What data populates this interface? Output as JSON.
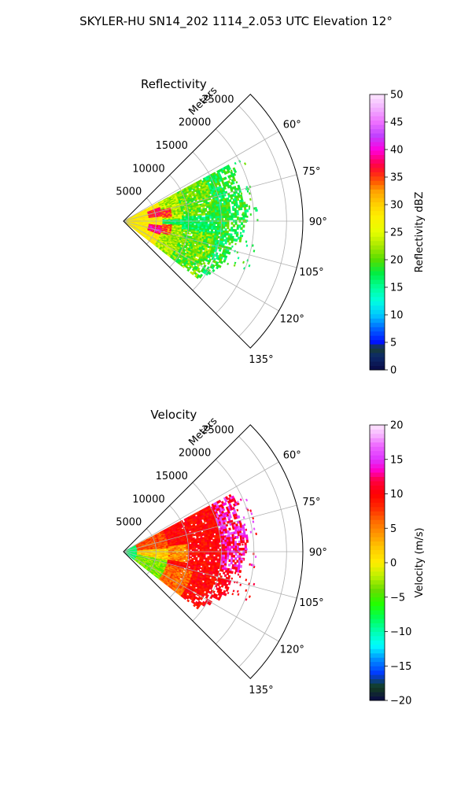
{
  "figure_title": "SKYLER-HU  SN14_202  1114_2.053 UTC Elevation 12°",
  "chart_data": [
    {
      "type": "heatmap",
      "subtype": "polar-sector-radar",
      "title": "Reflectivity",
      "radial_axis_label": "Meters",
      "radial_ticks": [
        "5000",
        "10000",
        "15000",
        "20000",
        "25000"
      ],
      "radial_tick_values": [
        5000,
        10000,
        15000,
        20000,
        25000
      ],
      "angle_ticks": [
        "60°",
        "75°",
        "90°",
        "105°",
        "120°",
        "135°"
      ],
      "angle_tick_values": [
        60,
        75,
        90,
        105,
        120,
        135
      ],
      "angle_range": [
        45,
        135
      ],
      "radius_range": [
        0,
        27500
      ],
      "grid": true,
      "colorbar": {
        "label": "Reflectivity dBZ",
        "range": [
          0,
          50
        ],
        "ticks": [
          "0",
          "5",
          "10",
          "15",
          "20",
          "25",
          "30",
          "35",
          "40",
          "45",
          "50"
        ],
        "tick_values": [
          0,
          5,
          10,
          15,
          20,
          25,
          30,
          35,
          40,
          45,
          50
        ]
      },
      "echo_regions": [
        {
          "angle_range": [
            62,
            128
          ],
          "range_m": [
            0,
            6000
          ],
          "value": 27
        },
        {
          "angle_range": [
            70,
            82
          ],
          "range_m": [
            4000,
            8000
          ],
          "value": 36
        },
        {
          "angle_range": [
            98,
            110
          ],
          "range_m": [
            4000,
            8000
          ],
          "value": 37
        },
        {
          "angle_range": [
            62,
            128
          ],
          "range_m": [
            6000,
            14000
          ],
          "value": 21
        },
        {
          "angle_range": [
            62,
            120
          ],
          "range_m": [
            14000,
            19000
          ],
          "value": 17
        }
      ]
    },
    {
      "type": "heatmap",
      "subtype": "polar-sector-radar",
      "title": "Velocity",
      "radial_axis_label": "Meters",
      "radial_ticks": [
        "5000",
        "10000",
        "15000",
        "20000",
        "25000"
      ],
      "radial_tick_values": [
        5000,
        10000,
        15000,
        20000,
        25000
      ],
      "angle_ticks": [
        "60°",
        "75°",
        "90°",
        "105°",
        "120°",
        "135°"
      ],
      "angle_tick_values": [
        60,
        75,
        90,
        105,
        120,
        135
      ],
      "angle_range": [
        45,
        135
      ],
      "radius_range": [
        0,
        27500
      ],
      "grid": true,
      "colorbar": {
        "label": "Velocity (m/s)",
        "range": [
          -20,
          20
        ],
        "ticks": [
          "−20",
          "−15",
          "−10",
          "−5",
          "0",
          "5",
          "10",
          "15",
          "20"
        ],
        "tick_values": [
          -20,
          -15,
          -10,
          -5,
          0,
          5,
          10,
          15,
          20
        ]
      },
      "echo_regions": [
        {
          "angle_range": [
            62,
            128
          ],
          "range_m": [
            0,
            2500
          ],
          "value": -9
        },
        {
          "angle_range": [
            100,
            128
          ],
          "range_m": [
            2500,
            7000
          ],
          "value": -4
        },
        {
          "angle_range": [
            62,
            100
          ],
          "range_m": [
            2500,
            9000
          ],
          "value": 7
        },
        {
          "angle_range": [
            85,
            108
          ],
          "range_m": [
            3000,
            8000
          ],
          "value": 1
        },
        {
          "angle_range": [
            62,
            120
          ],
          "range_m": [
            9000,
            15000
          ],
          "value": 9
        },
        {
          "angle_range": [
            62,
            100
          ],
          "range_m": [
            15000,
            19000
          ],
          "value": 15
        }
      ]
    }
  ]
}
